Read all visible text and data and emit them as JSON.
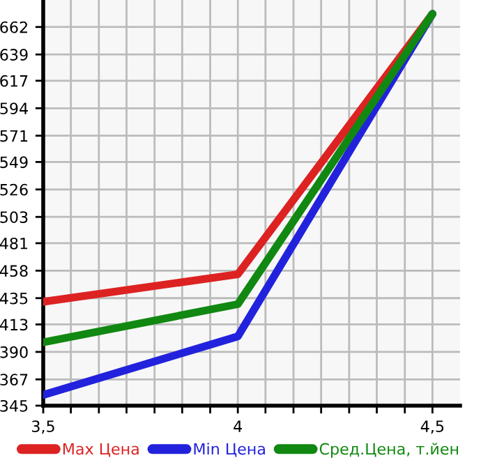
{
  "chart_data": {
    "type": "line",
    "x": [
      3.5,
      4,
      4.5
    ],
    "series": [
      {
        "name": "Max Цена",
        "color": "#dd2222",
        "values": [
          432,
          455,
          673
        ]
      },
      {
        "name": "Min Цена",
        "color": "#2222dd",
        "values": [
          354,
          403,
          673
        ]
      },
      {
        "name": "Сред.Цена, т.йен",
        "color": "#118811",
        "values": [
          398,
          430,
          673
        ]
      }
    ],
    "xlim": [
      3.5,
      4.571
    ],
    "xticks": [
      {
        "value": 3.5,
        "label": "3,5"
      },
      {
        "value": 3.571,
        "label": null
      },
      {
        "value": 3.643,
        "label": null
      },
      {
        "value": 3.714,
        "label": null
      },
      {
        "value": 3.786,
        "label": null
      },
      {
        "value": 3.857,
        "label": null
      },
      {
        "value": 3.929,
        "label": null
      },
      {
        "value": 4,
        "label": "4"
      },
      {
        "value": 4.071,
        "label": null
      },
      {
        "value": 4.143,
        "label": null
      },
      {
        "value": 4.214,
        "label": null
      },
      {
        "value": 4.286,
        "label": null
      },
      {
        "value": 4.357,
        "label": null
      },
      {
        "value": 4.429,
        "label": null
      },
      {
        "value": 4.5,
        "label": "4,5"
      }
    ],
    "ylim": [
      345,
      684.6
    ],
    "yticks": [
      345,
      367,
      390,
      413,
      435,
      458,
      481,
      503,
      526,
      549,
      571,
      594,
      617,
      639,
      662
    ],
    "grid": true,
    "legend": "bottom",
    "marker": "none",
    "line_style": "solid"
  }
}
